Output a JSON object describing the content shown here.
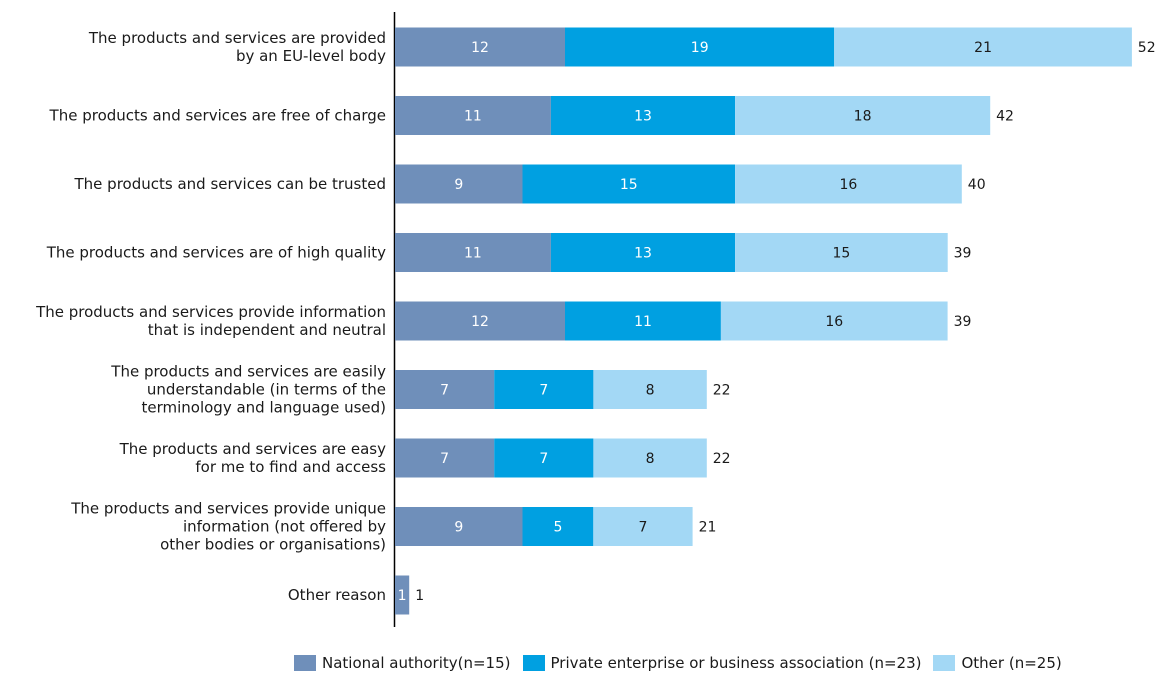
{
  "chart_data": {
    "type": "bar",
    "orientation": "horizontal",
    "stacked": true,
    "categories": [
      [
        "The products and services are provided",
        "by an EU-level body"
      ],
      [
        "The products and services are free of charge"
      ],
      [
        "The products and services can be trusted"
      ],
      [
        "The products and services are of high quality"
      ],
      [
        "The products and services provide information",
        "that is independent and neutral"
      ],
      [
        "The products and services are easily",
        "understandable (in terms of the",
        "terminology and language used)"
      ],
      [
        "The products and services are easy",
        "for me to find and access"
      ],
      [
        "The products and services provide unique",
        "information (not offered by",
        "other bodies or organisations)"
      ],
      [
        "Other reason"
      ]
    ],
    "series": [
      {
        "name": "National authority(n=15)",
        "color": "#6f8fba",
        "label_color": "#ffffff",
        "values": [
          12,
          11,
          9,
          11,
          12,
          7,
          7,
          9,
          1
        ]
      },
      {
        "name": "Private enterprise or business association (n=23)",
        "color": "#00a0e1",
        "label_color": "#ffffff",
        "values": [
          19,
          13,
          15,
          13,
          11,
          7,
          7,
          5,
          0
        ]
      },
      {
        "name": "Other (n=25)",
        "color": "#a3d8f5",
        "label_color": "#1a1a1a",
        "values": [
          21,
          18,
          16,
          15,
          16,
          8,
          8,
          7,
          0
        ]
      }
    ],
    "totals": [
      52,
      42,
      40,
      39,
      39,
      22,
      22,
      21,
      1
    ],
    "xlim": [
      0,
      52
    ],
    "grid": false,
    "legend_position": "bottom"
  }
}
